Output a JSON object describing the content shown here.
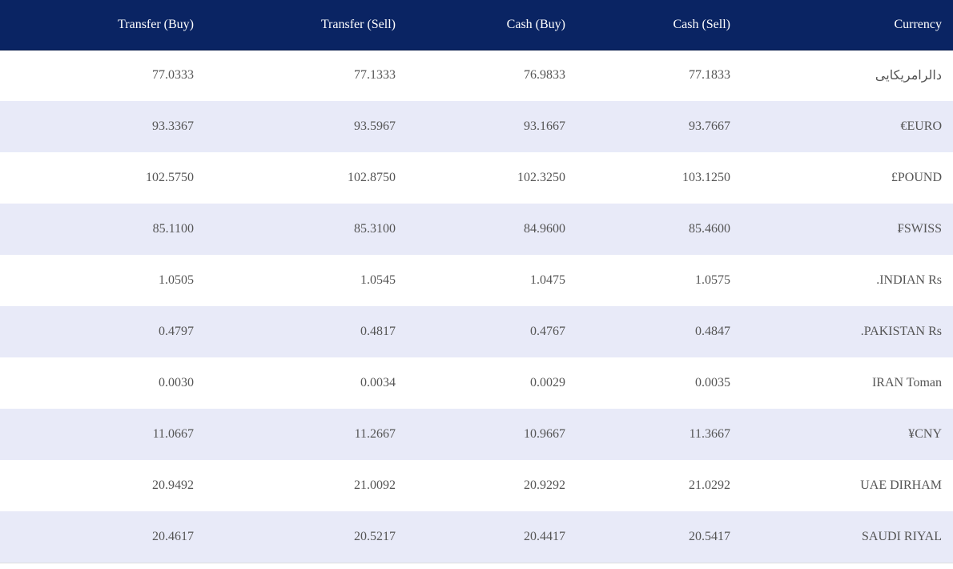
{
  "table": {
    "headers": [
      "Transfer (Buy)",
      "Transfer (Sell)",
      "Cash (Buy)",
      "Cash (Sell)",
      "Currency"
    ],
    "rows": [
      [
        "77.0333",
        "77.1333",
        "76.9833",
        "77.1833",
        "دالرامريكايى"
      ],
      [
        "93.3367",
        "93.5967",
        "93.1667",
        "93.7667",
        "€EURO"
      ],
      [
        "102.5750",
        "102.8750",
        "102.3250",
        "103.1250",
        "£POUND"
      ],
      [
        "85.1100",
        "85.3100",
        "84.9600",
        "85.4600",
        "₣SWISS"
      ],
      [
        "1.0505",
        "1.0545",
        "1.0475",
        "1.0575",
        ".INDIAN Rs"
      ],
      [
        "0.4797",
        "0.4817",
        "0.4767",
        "0.4847",
        ".PAKISTAN Rs"
      ],
      [
        "0.0030",
        "0.0034",
        "0.0029",
        "0.0035",
        "IRAN Toman"
      ],
      [
        "11.0667",
        "11.2667",
        "10.9667",
        "11.3667",
        "¥CNY"
      ],
      [
        "20.9492",
        "21.0092",
        "20.9292",
        "21.0292",
        "UAE DIRHAM"
      ],
      [
        "20.4617",
        "20.5217",
        "20.4417",
        "20.5417",
        "SAUDI RIYAL"
      ]
    ]
  }
}
